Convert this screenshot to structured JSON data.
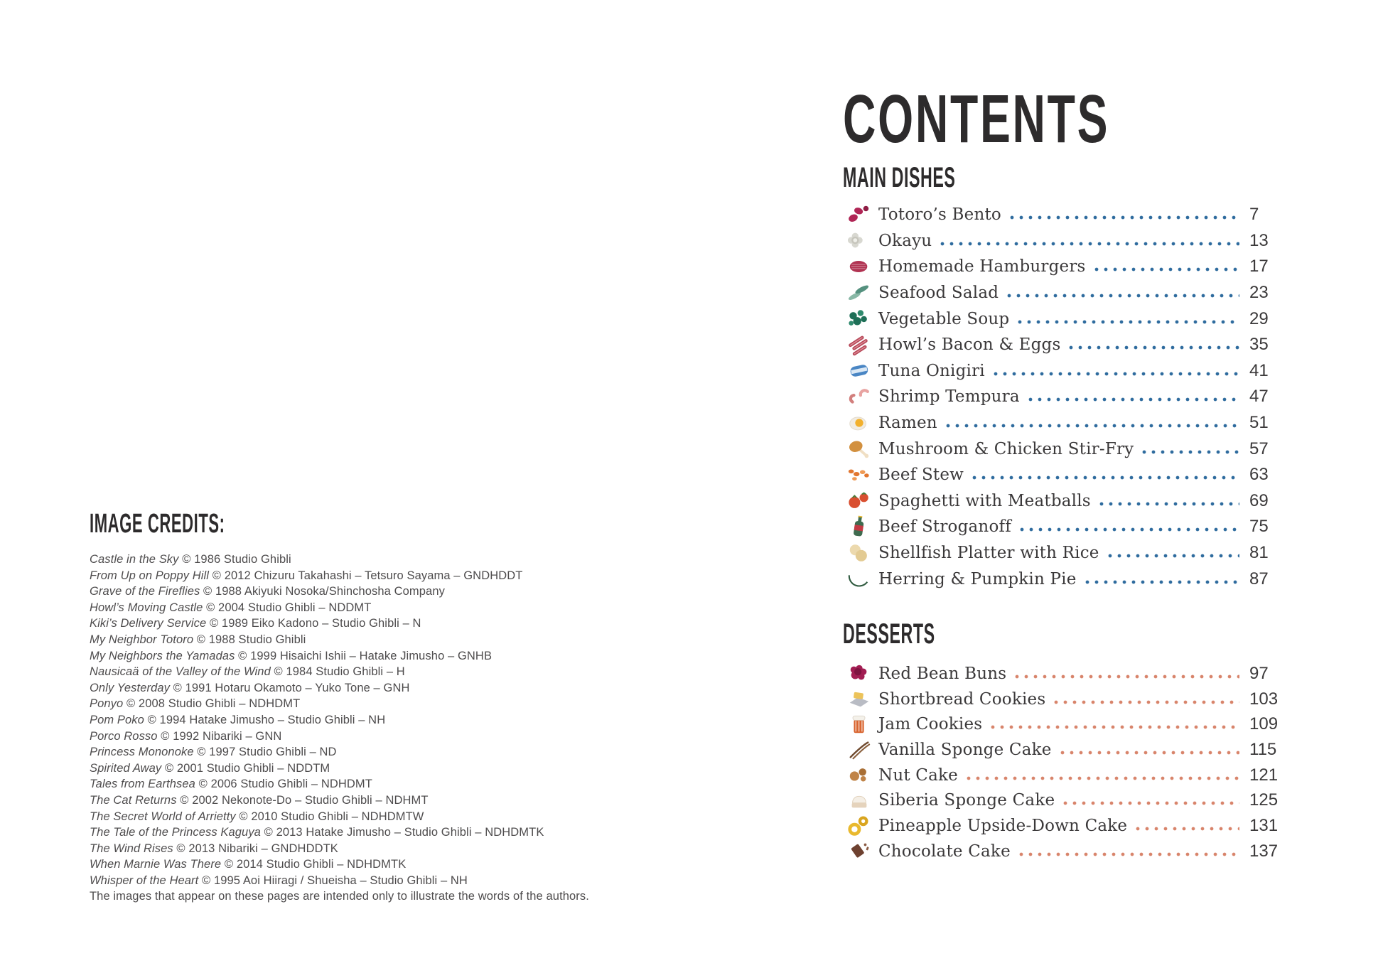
{
  "left": {
    "credits_heading": "IMAGE CREDITS:",
    "credits": [
      {
        "title": "Castle in the Sky",
        "rest": " © 1986 Studio Ghibli"
      },
      {
        "title": "From Up on Poppy Hill",
        "rest": " © 2012 Chizuru Takahashi – Tetsuro Sayama – GNDHDDT"
      },
      {
        "title": "Grave of the Fireflies",
        "rest": " © 1988 Akiyuki Nosoka/Shinchosha Company"
      },
      {
        "title": "Howl’s Moving Castle",
        "rest": " © 2004 Studio Ghibli – NDDMT"
      },
      {
        "title": "Kiki’s Delivery Service",
        "rest": " © 1989 Eiko Kadono – Studio Ghibli – N"
      },
      {
        "title": "My Neighbor Totoro",
        "rest": " © 1988 Studio Ghibli"
      },
      {
        "title": "My Neighbors the Yamadas",
        "rest": " © 1999 Hisaichi Ishii – Hatake Jimusho – GNHB"
      },
      {
        "title": "Nausicaä of the Valley of the Wind",
        "rest": " © 1984 Studio Ghibli – H"
      },
      {
        "title": "Only Yesterday",
        "rest": " © 1991 Hotaru Okamoto – Yuko Tone – GNH"
      },
      {
        "title": "Ponyo",
        "rest": " © 2008 Studio Ghibli – NDHDMT"
      },
      {
        "title": "Pom Poko",
        "rest": " © 1994 Hatake Jimusho – Studio Ghibli – NH"
      },
      {
        "title": "Porco Rosso",
        "rest": " © 1992 Nibariki – GNN"
      },
      {
        "title": "Princess Mononoke",
        "rest": " © 1997 Studio Ghibli – ND"
      },
      {
        "title": "Spirited Away",
        "rest": " © 2001 Studio Ghibli – NDDTM"
      },
      {
        "title": "Tales from Earthsea",
        "rest": " © 2006 Studio Ghibli – NDHDMT"
      },
      {
        "title": "The Cat Returns",
        "rest": " © 2002 Nekonote-Do – Studio Ghibli – NDHMT"
      },
      {
        "title": "The Secret World of Arrietty",
        "rest": " © 2010 Studio Ghibli – NDHDMTW"
      },
      {
        "title": "The Tale of the Princess Kaguya",
        "rest": " © 2013 Hatake Jimusho – Studio Ghibli – NDHDMTK"
      },
      {
        "title": "The Wind Rises",
        "rest": " © 2013 Nibariki – GNDHDDTK"
      },
      {
        "title": "When Marnie Was There",
        "rest": " © 2014 Studio Ghibli – NDHDMTK"
      },
      {
        "title": "Whisper of the Heart",
        "rest": " © 1995 Aoi Hiiragi / Shueisha – Studio Ghibli – NH"
      }
    ],
    "credits_note": "The images that appear on these pages are intended only to illustrate the words of the authors."
  },
  "right": {
    "title": "CONTENTS",
    "sections": [
      {
        "heading": "MAIN DISHES",
        "leader_dot_color": "#2e6b9e",
        "items": [
          {
            "label": "Totoro’s Bento",
            "page": "7",
            "icon": "beans-icon",
            "icon_colors": [
              "#b02555",
              "#8f1d45"
            ]
          },
          {
            "label": "Okayu",
            "page": "13",
            "icon": "rice-fluff-icon",
            "icon_colors": [
              "#d8d8d1",
              "#c6c5bc"
            ]
          },
          {
            "label": "Homemade Hamburgers",
            "page": "17",
            "icon": "patty-icon",
            "icon_colors": [
              "#b13352",
              "#d98a9b"
            ]
          },
          {
            "label": "Seafood Salad",
            "page": "23",
            "icon": "herb-sprigs-icon",
            "icon_colors": [
              "#55917f",
              "#89b8a6"
            ]
          },
          {
            "label": "Vegetable Soup",
            "page": "29",
            "icon": "vegetable-cluster-icon",
            "icon_colors": [
              "#1e6f57",
              "#2f8a6d"
            ]
          },
          {
            "label": "Howl’s Bacon & Eggs",
            "page": "35",
            "icon": "bacon-icon",
            "icon_colors": [
              "#b84a5a",
              "#e2949e"
            ]
          },
          {
            "label": "Tuna Onigiri",
            "page": "41",
            "icon": "tuna-can-icon",
            "icon_colors": [
              "#4a86c4",
              "#dce9f5"
            ]
          },
          {
            "label": "Shrimp Tempura",
            "page": "47",
            "icon": "shrimp-icon",
            "icon_colors": [
              "#e8a3a1",
              "#d27f7d"
            ]
          },
          {
            "label": "Ramen",
            "page": "51",
            "icon": "egg-icon",
            "icon_colors": [
              "#f2b02c",
              "#f1ece2"
            ]
          },
          {
            "label": "Mushroom & Chicken Stir-Fry",
            "page": "57",
            "icon": "drumstick-icon",
            "icon_colors": [
              "#d2903f",
              "#f0dfc4"
            ]
          },
          {
            "label": "Beef Stew",
            "page": "63",
            "icon": "carrot-chunks-icon",
            "icon_colors": [
              "#e2762f",
              "#ef9a55"
            ]
          },
          {
            "label": "Spaghetti with Meatballs",
            "page": "69",
            "icon": "tomato-icon",
            "icon_colors": [
              "#d94f30",
              "#4a7c3a"
            ]
          },
          {
            "label": "Beef Stroganoff",
            "page": "75",
            "icon": "sauce-bottle-icon",
            "icon_colors": [
              "#3f6b4f",
              "#c43a44"
            ]
          },
          {
            "label": "Shellfish Platter with Rice",
            "page": "81",
            "icon": "shells-icon",
            "icon_colors": [
              "#ecd9ad",
              "#e3cb93"
            ]
          },
          {
            "label": "Herring & Pumpkin Pie",
            "page": "87",
            "icon": "pumpkin-wedge-icon",
            "icon_colors": [
              "#e88a3a",
              "#2f5a3f"
            ]
          }
        ]
      },
      {
        "heading": "DESSERTS",
        "leader_dot_color": "#d8846b",
        "items": [
          {
            "label": "Red Bean Buns",
            "page": "97",
            "icon": "bean-paste-icon",
            "icon_colors": [
              "#a21d52",
              "#7e1340"
            ]
          },
          {
            "label": "Shortbread Cookies",
            "page": "103",
            "icon": "butter-block-icon",
            "icon_colors": [
              "#ecc35a",
              "#b9bcc4"
            ]
          },
          {
            "label": "Jam Cookies",
            "page": "109",
            "icon": "jam-jar-icon",
            "icon_colors": [
              "#d8622c",
              "#f4f1ea"
            ]
          },
          {
            "label": "Vanilla Sponge Cake",
            "page": "115",
            "icon": "vanilla-pods-icon",
            "icon_colors": [
              "#6f4a2f",
              "#8a5f3d"
            ]
          },
          {
            "label": "Nut Cake",
            "page": "121",
            "icon": "nuts-icon",
            "icon_colors": [
              "#c08448",
              "#a96f35"
            ]
          },
          {
            "label": "Siberia Sponge Cake",
            "page": "125",
            "icon": "cream-cake-icon",
            "icon_colors": [
              "#f5efe6",
              "#e5d3bc"
            ]
          },
          {
            "label": "Pineapple Upside-Down Cake",
            "page": "131",
            "icon": "pineapple-rings-icon",
            "icon_colors": [
              "#e9b92e",
              "#d9a51f"
            ]
          },
          {
            "label": "Chocolate Cake",
            "page": "137",
            "icon": "chocolate-icon",
            "icon_colors": [
              "#6e4130",
              "#8a5a42"
            ]
          }
        ]
      }
    ]
  }
}
